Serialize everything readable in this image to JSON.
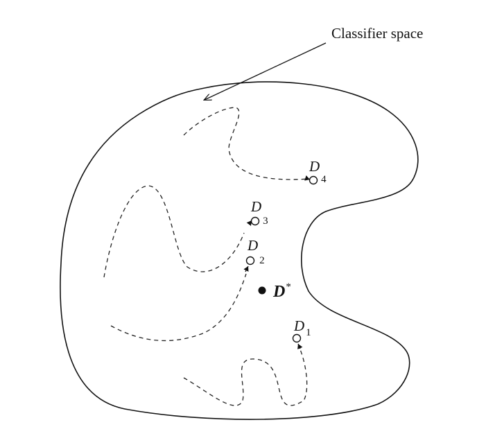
{
  "diagram": {
    "title": "Classifier space",
    "optimum": {
      "symbol": "D",
      "superscript": "*"
    },
    "nodes": [
      {
        "symbol": "D",
        "subscript": "1"
      },
      {
        "symbol": "D",
        "subscript": "2"
      },
      {
        "symbol": "D",
        "subscript": "3"
      },
      {
        "symbol": "D",
        "subscript": "4"
      }
    ]
  },
  "colors": {
    "ink": "#111111",
    "background": "#ffffff"
  }
}
